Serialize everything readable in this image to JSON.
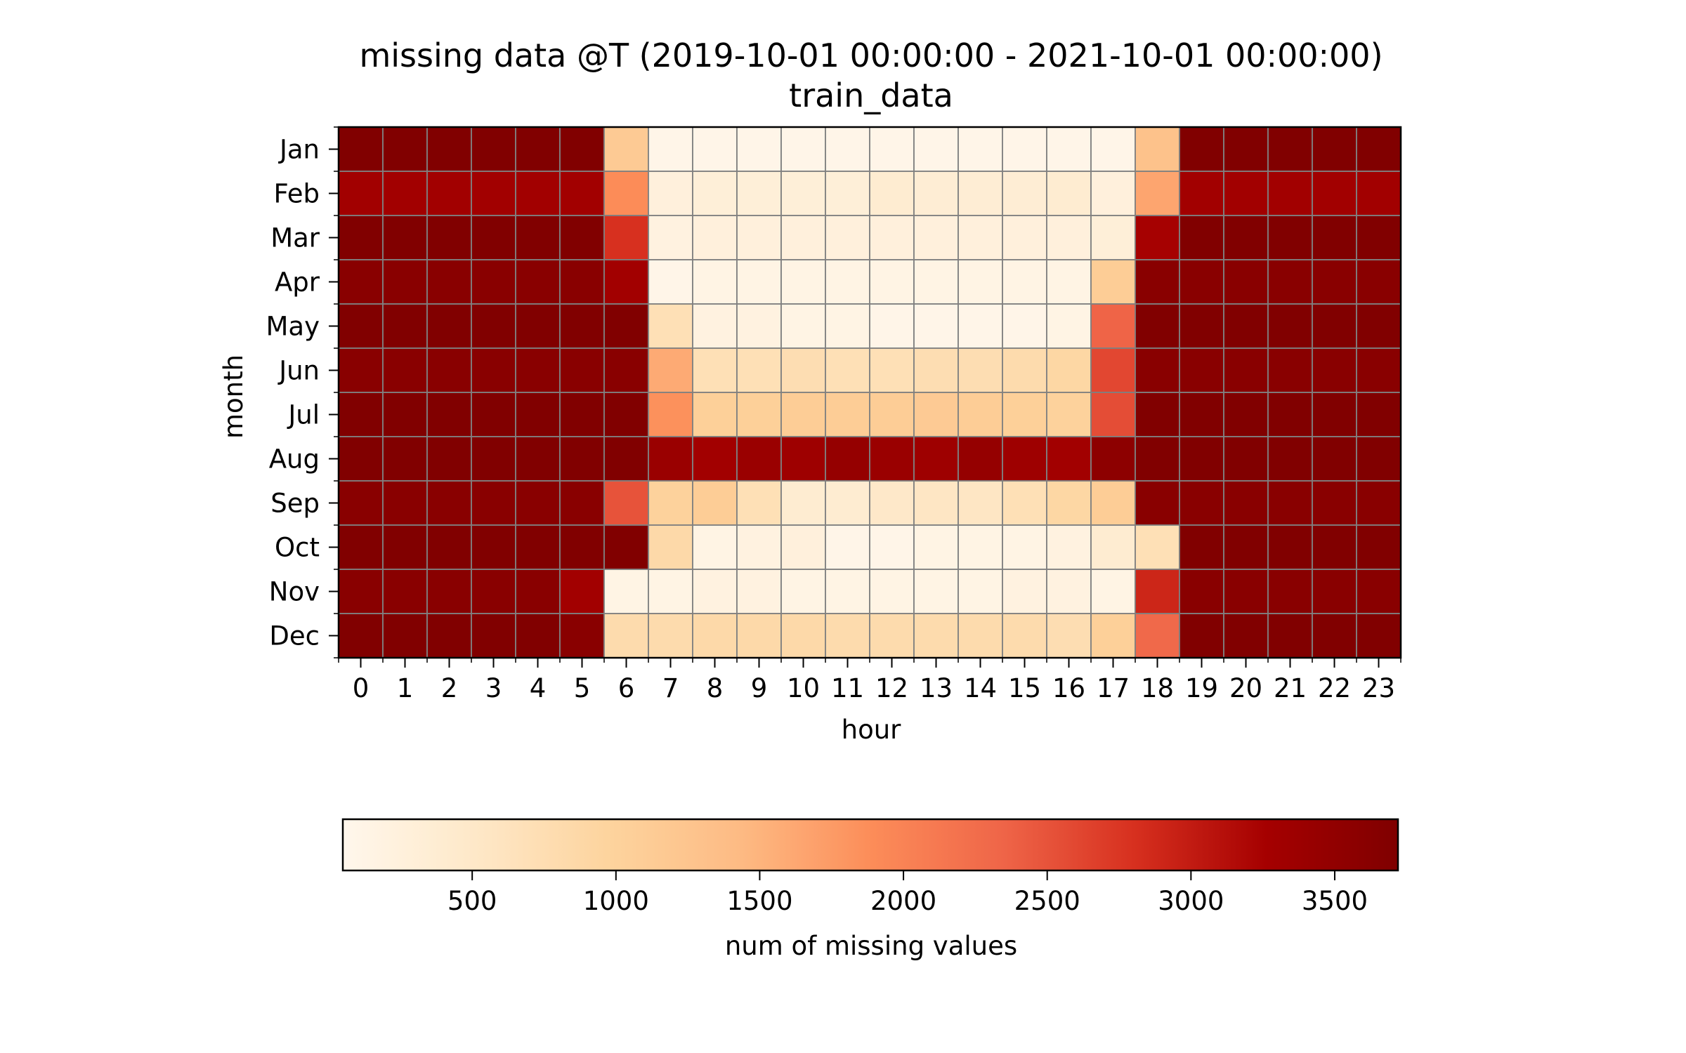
{
  "chart_data": {
    "type": "heatmap",
    "title": "missing data @T (2019-10-01 00:00:00 - 2021-10-01 00:00:00)",
    "subtitle": "train_data",
    "xlabel": "hour",
    "ylabel": "month",
    "x_categories": [
      "0",
      "1",
      "2",
      "3",
      "4",
      "5",
      "6",
      "7",
      "8",
      "9",
      "10",
      "11",
      "12",
      "13",
      "14",
      "15",
      "16",
      "17",
      "18",
      "19",
      "20",
      "21",
      "22",
      "23"
    ],
    "y_categories": [
      "Jan",
      "Feb",
      "Mar",
      "Apr",
      "May",
      "Jun",
      "Jul",
      "Aug",
      "Sep",
      "Oct",
      "Nov",
      "Dec"
    ],
    "values": [
      [
        3700,
        3700,
        3700,
        3700,
        3700,
        3700,
        1150,
        100,
        100,
        100,
        100,
        100,
        100,
        100,
        100,
        100,
        100,
        100,
        1300,
        3700,
        3700,
        3700,
        3700,
        3700
      ],
      [
        3300,
        3300,
        3300,
        3300,
        3300,
        3300,
        1900,
        250,
        300,
        300,
        300,
        300,
        400,
        350,
        350,
        350,
        400,
        250,
        1650,
        3300,
        3300,
        3300,
        3300,
        3300
      ],
      [
        3700,
        3700,
        3700,
        3700,
        3700,
        3700,
        2800,
        200,
        250,
        250,
        250,
        250,
        250,
        250,
        250,
        250,
        250,
        300,
        3250,
        3700,
        3700,
        3700,
        3700,
        3700
      ],
      [
        3600,
        3600,
        3600,
        3600,
        3600,
        3600,
        3300,
        100,
        150,
        150,
        150,
        150,
        150,
        150,
        150,
        150,
        150,
        1100,
        3600,
        3600,
        3600,
        3600,
        3600,
        3600
      ],
      [
        3700,
        3700,
        3700,
        3700,
        3700,
        3700,
        3700,
        700,
        200,
        200,
        150,
        150,
        100,
        100,
        100,
        100,
        150,
        2350,
        3700,
        3700,
        3700,
        3700,
        3700,
        3700
      ],
      [
        3600,
        3600,
        3600,
        3600,
        3600,
        3600,
        3600,
        1600,
        700,
        700,
        750,
        700,
        700,
        750,
        750,
        800,
        900,
        2600,
        3600,
        3600,
        3600,
        3600,
        3600,
        3600
      ],
      [
        3700,
        3700,
        3700,
        3700,
        3700,
        3700,
        3700,
        1850,
        1050,
        1050,
        1100,
        1100,
        1100,
        1150,
        1100,
        1050,
        1000,
        2550,
        3700,
        3700,
        3700,
        3700,
        3700,
        3700
      ],
      [
        3700,
        3700,
        3700,
        3700,
        3700,
        3700,
        3700,
        3400,
        3300,
        3400,
        3350,
        3450,
        3400,
        3350,
        3450,
        3350,
        3300,
        3550,
        3700,
        3700,
        3700,
        3700,
        3700,
        3700
      ],
      [
        3600,
        3600,
        3600,
        3600,
        3600,
        3600,
        2500,
        1000,
        1100,
        700,
        400,
        400,
        500,
        550,
        550,
        700,
        900,
        1100,
        3600,
        3600,
        3600,
        3600,
        3600,
        3600
      ],
      [
        3700,
        3700,
        3700,
        3700,
        3700,
        3700,
        3700,
        850,
        150,
        200,
        250,
        100,
        100,
        150,
        150,
        150,
        200,
        400,
        700,
        3700,
        3700,
        3700,
        3700,
        3700
      ],
      [
        3600,
        3600,
        3600,
        3600,
        3600,
        3300,
        150,
        150,
        200,
        200,
        150,
        150,
        150,
        150,
        150,
        200,
        200,
        150,
        2900,
        3600,
        3600,
        3600,
        3600,
        3600
      ],
      [
        3700,
        3700,
        3700,
        3700,
        3700,
        3600,
        800,
        800,
        850,
        850,
        850,
        800,
        800,
        800,
        800,
        800,
        750,
        1050,
        2300,
        3700,
        3700,
        3700,
        3700,
        3700
      ]
    ],
    "colormap": "OrRd",
    "vmin": 50,
    "vmax": 3720,
    "colorbar_label": "num of missing values",
    "colorbar_ticks": [
      "500",
      "1000",
      "1500",
      "2000",
      "2500",
      "3000",
      "3500"
    ],
    "colorbar_orientation": "horizontal",
    "grid": true,
    "grid_color": "#808080",
    "colormap_stops": [
      "#fff7ec",
      "#fee8c8",
      "#fdd49e",
      "#fdbb84",
      "#fc8d59",
      "#ef6548",
      "#d7301f",
      "#a50000",
      "#7f0000"
    ]
  }
}
